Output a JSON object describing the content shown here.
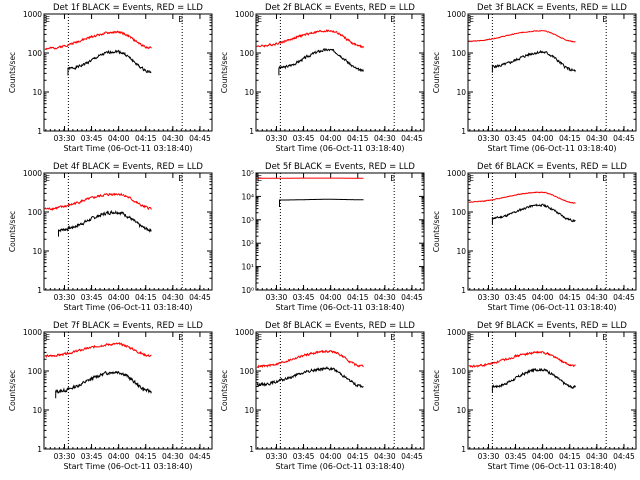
{
  "figure": {
    "background": "#ffffff"
  },
  "styles": {
    "events_color": "#000000",
    "lld_color": "#ff0000",
    "axis_color": "#000000"
  },
  "chart_data": [
    {
      "type": "line",
      "title": "Det 1f BLACK = Events, RED = LLD",
      "xlabel": "Start Time (06-Oct-11 03:18:40)",
      "ylabel": "Counts/sec",
      "x_tick_labels": [
        "03:30",
        "03:45",
        "04:00",
        "04:15",
        "04:30",
        "04:45"
      ],
      "x_tick_minutes": [
        11.33,
        26.33,
        41.33,
        56.33,
        71.33,
        86.33
      ],
      "xlim_minutes": [
        0,
        93
      ],
      "y_scale": "log",
      "ylim": [
        1,
        1000
      ],
      "y_tick_labels": [
        "1",
        "10",
        "100",
        "1000"
      ],
      "y_tick_values": [
        1,
        10,
        100,
        1000
      ],
      "corner_marks": {
        "left": "E",
        "right": "E"
      },
      "dotted_vlines_minutes": [
        13.5,
        76.5
      ],
      "series": [
        {
          "role": "events",
          "color": "#000000",
          "x_start": 13.3,
          "x_end": 59.5,
          "start_value": 40,
          "peak_value": 110,
          "end_value": 33,
          "peak_at": 40.0,
          "noise": 0.05,
          "seed": 1
        },
        {
          "role": "lld",
          "color": "#ff0000",
          "x_start": 0.5,
          "x_end": 59.5,
          "start_value": 130,
          "peak_value": 340,
          "end_value": 135,
          "peak_at": 40.5,
          "noise": 0.04,
          "seed": 2
        }
      ]
    },
    {
      "type": "line",
      "title": "Det 2f BLACK = Events, RED = LLD",
      "xlabel": "Start Time (06-Oct-11 03:18:40)",
      "ylabel": "Counts/sec",
      "x_tick_labels": [
        "03:30",
        "03:45",
        "04:00",
        "04:15",
        "04:30",
        "04:45"
      ],
      "x_tick_minutes": [
        11.33,
        26.33,
        41.33,
        56.33,
        71.33,
        86.33
      ],
      "xlim_minutes": [
        0,
        93
      ],
      "y_scale": "log",
      "ylim": [
        1,
        1000
      ],
      "y_tick_labels": [
        "1",
        "10",
        "100",
        "1000"
      ],
      "y_tick_values": [
        1,
        10,
        100,
        1000
      ],
      "corner_marks": {
        "left": "E",
        "right": "E"
      },
      "dotted_vlines_minutes": [
        13.5,
        76.5
      ],
      "series": [
        {
          "role": "events",
          "color": "#000000",
          "x_start": 12.7,
          "x_end": 59.5,
          "start_value": 42,
          "peak_value": 120,
          "end_value": 35,
          "peak_at": 40.0,
          "noise": 0.05,
          "seed": 3
        },
        {
          "role": "lld",
          "color": "#ff0000",
          "x_start": 0.5,
          "x_end": 59.5,
          "start_value": 150,
          "peak_value": 370,
          "end_value": 145,
          "peak_at": 40.5,
          "noise": 0.04,
          "seed": 4
        }
      ]
    },
    {
      "type": "line",
      "title": "Det 3f BLACK = Events, RED = LLD",
      "xlabel": "Start Time (06-Oct-11 03:18:40)",
      "ylabel": "Counts/sec",
      "x_tick_labels": [
        "03:30",
        "03:45",
        "04:00",
        "04:15",
        "04:30",
        "04:45"
      ],
      "x_tick_minutes": [
        11.33,
        26.33,
        41.33,
        56.33,
        71.33,
        86.33
      ],
      "xlim_minutes": [
        0,
        93
      ],
      "y_scale": "log",
      "ylim": [
        1,
        1000
      ],
      "y_tick_labels": [
        "1",
        "10",
        "100",
        "1000"
      ],
      "y_tick_values": [
        1,
        10,
        100,
        1000
      ],
      "corner_marks": {
        "left": "E",
        "right": "E"
      },
      "dotted_vlines_minutes": [
        13.5,
        76.5
      ],
      "series": [
        {
          "role": "events",
          "color": "#000000",
          "x_start": 13.5,
          "x_end": 59.5,
          "start_value": 45,
          "peak_value": 105,
          "end_value": 35,
          "peak_at": 41.0,
          "noise": 0.05,
          "seed": 5
        },
        {
          "role": "lld",
          "color": "#ff0000",
          "x_start": 0.5,
          "x_end": 59.5,
          "start_value": 200,
          "peak_value": 370,
          "end_value": 195,
          "peak_at": 40.5,
          "noise": 0.015,
          "seed": 6
        }
      ]
    },
    {
      "type": "line",
      "title": "Det 4f BLACK = Events, RED = LLD",
      "xlabel": "Start Time (06-Oct-11 03:18:40)",
      "ylabel": "Counts/sec",
      "x_tick_labels": [
        "03:30",
        "03:45",
        "04:00",
        "04:15",
        "04:30",
        "04:45"
      ],
      "x_tick_minutes": [
        11.33,
        26.33,
        41.33,
        56.33,
        71.33,
        86.33
      ],
      "xlim_minutes": [
        0,
        93
      ],
      "y_scale": "log",
      "ylim": [
        1,
        1000
      ],
      "y_tick_labels": [
        "1",
        "10",
        "100",
        "1000"
      ],
      "y_tick_values": [
        1,
        10,
        100,
        1000
      ],
      "corner_marks": {
        "left": "E",
        "right": "E"
      },
      "dotted_vlines_minutes": [
        13.5,
        76.5
      ],
      "series": [
        {
          "role": "events",
          "color": "#000000",
          "x_start": 8.0,
          "x_end": 59.5,
          "start_value": 35,
          "peak_value": 100,
          "end_value": 35,
          "peak_at": 40.0,
          "noise": 0.06,
          "seed": 7
        },
        {
          "role": "lld",
          "color": "#ff0000",
          "x_start": 0.5,
          "x_end": 59.5,
          "start_value": 120,
          "peak_value": 290,
          "end_value": 125,
          "peak_at": 40.5,
          "noise": 0.045,
          "seed": 8
        }
      ]
    },
    {
      "type": "line",
      "title": "Det 5f BLACK = Events, RED = LLD",
      "xlabel": "Start Time (06-Oct-11 03:18:40)",
      "ylabel": "",
      "x_tick_labels": [
        "03:30",
        "03:45",
        "04:00",
        "04:15",
        "04:30",
        "04:45"
      ],
      "x_tick_minutes": [
        11.33,
        26.33,
        41.33,
        56.33,
        71.33,
        86.33
      ],
      "xlim_minutes": [
        0,
        93
      ],
      "y_scale": "log",
      "ylim": [
        1,
        100000
      ],
      "y_tick_labels": [
        "10⁰",
        "10¹",
        "10²",
        "10³",
        "10⁴",
        "10⁵"
      ],
      "y_tick_values": [
        1,
        10,
        100,
        1000,
        10000,
        100000
      ],
      "corner_marks": {
        "left": "E",
        "right": "E"
      },
      "dotted_vlines_minutes": [
        13.5,
        76.5
      ],
      "series": [
        {
          "role": "events",
          "color": "#000000",
          "x_start": 13.0,
          "x_end": 59.5,
          "start_value": 7000,
          "peak_value": 7500,
          "end_value": 7200,
          "peak_at": 40.0,
          "noise": 0.002,
          "seed": 9
        },
        {
          "role": "lld",
          "color": "#ff0000",
          "x_start": 0.5,
          "x_end": 59.5,
          "start_value": 60000,
          "peak_value": 60500,
          "end_value": 60000,
          "peak_at": 40.0,
          "noise": 0.001,
          "seed": 10
        }
      ]
    },
    {
      "type": "line",
      "title": "Det 6f BLACK = Events, RED = LLD",
      "xlabel": "Start Time (06-Oct-11 03:18:40)",
      "ylabel": "Counts/sec",
      "x_tick_labels": [
        "03:30",
        "03:45",
        "04:00",
        "04:15",
        "04:30",
        "04:45"
      ],
      "x_tick_minutes": [
        11.33,
        26.33,
        41.33,
        56.33,
        71.33,
        86.33
      ],
      "xlim_minutes": [
        0,
        93
      ],
      "y_scale": "log",
      "ylim": [
        1,
        1000
      ],
      "y_tick_labels": [
        "1",
        "10",
        "100",
        "1000"
      ],
      "y_tick_values": [
        1,
        10,
        100,
        1000
      ],
      "corner_marks": {
        "left": "E",
        "right": "E"
      },
      "dotted_vlines_minutes": [
        13.5,
        76.5
      ],
      "series": [
        {
          "role": "events",
          "color": "#000000",
          "x_start": 13.5,
          "x_end": 59.5,
          "start_value": 70,
          "peak_value": 150,
          "end_value": 60,
          "peak_at": 40.0,
          "noise": 0.04,
          "seed": 11
        },
        {
          "role": "lld",
          "color": "#ff0000",
          "x_start": 0.5,
          "x_end": 59.5,
          "start_value": 180,
          "peak_value": 320,
          "end_value": 170,
          "peak_at": 40.5,
          "noise": 0.015,
          "seed": 12
        }
      ]
    },
    {
      "type": "line",
      "title": "Det 7f BLACK = Events, RED = LLD",
      "xlabel": "Start Time (06-Oct-11 03:18:40)",
      "ylabel": "Counts/sec",
      "x_tick_labels": [
        "03:30",
        "03:45",
        "04:00",
        "04:15",
        "04:30",
        "04:45"
      ],
      "x_tick_minutes": [
        11.33,
        26.33,
        41.33,
        56.33,
        71.33,
        86.33
      ],
      "xlim_minutes": [
        0,
        93
      ],
      "y_scale": "log",
      "ylim": [
        1,
        1000
      ],
      "y_tick_labels": [
        "1",
        "10",
        "100",
        "1000"
      ],
      "y_tick_values": [
        1,
        10,
        100,
        1000
      ],
      "corner_marks": {
        "left": "E",
        "right": "E"
      },
      "dotted_vlines_minutes": [
        13.5,
        76.5
      ],
      "series": [
        {
          "role": "events",
          "color": "#000000",
          "x_start": 6.5,
          "x_end": 59.5,
          "start_value": 30,
          "peak_value": 95,
          "end_value": 30,
          "peak_at": 40.0,
          "noise": 0.06,
          "seed": 13
        },
        {
          "role": "lld",
          "color": "#ff0000",
          "x_start": 0.5,
          "x_end": 59.5,
          "start_value": 240,
          "peak_value": 490,
          "end_value": 245,
          "peak_at": 40.5,
          "noise": 0.04,
          "seed": 14
        }
      ]
    },
    {
      "type": "line",
      "title": "Det 8f BLACK = Events, RED = LLD",
      "xlabel": "Start Time (06-Oct-11 03:18:40)",
      "ylabel": "Counts/sec",
      "x_tick_labels": [
        "03:30",
        "03:45",
        "04:00",
        "04:15",
        "04:30",
        "04:45"
      ],
      "x_tick_minutes": [
        11.33,
        26.33,
        41.33,
        56.33,
        71.33,
        86.33
      ],
      "xlim_minutes": [
        0,
        93
      ],
      "y_scale": "log",
      "ylim": [
        1,
        1000
      ],
      "y_tick_labels": [
        "1",
        "10",
        "100",
        "1000"
      ],
      "y_tick_values": [
        1,
        10,
        100,
        1000
      ],
      "corner_marks": {
        "left": "E",
        "right": "E"
      },
      "dotted_vlines_minutes": [
        13.5,
        76.5
      ],
      "series": [
        {
          "role": "events",
          "color": "#000000",
          "x_start": 0.5,
          "x_end": 59.5,
          "start_value": 45,
          "peak_value": 115,
          "end_value": 40,
          "peak_at": 40.0,
          "noise": 0.05,
          "seed": 15
        },
        {
          "role": "lld",
          "color": "#ff0000",
          "x_start": 0.5,
          "x_end": 59.5,
          "start_value": 130,
          "peak_value": 320,
          "end_value": 130,
          "peak_at": 40.5,
          "noise": 0.04,
          "seed": 16
        }
      ]
    },
    {
      "type": "line",
      "title": "Det 9f BLACK = Events, RED = LLD",
      "xlabel": "Start Time (06-Oct-11 03:18:40)",
      "ylabel": "Counts/sec",
      "x_tick_labels": [
        "03:30",
        "03:45",
        "04:00",
        "04:15",
        "04:30",
        "04:45"
      ],
      "x_tick_minutes": [
        11.33,
        26.33,
        41.33,
        56.33,
        71.33,
        86.33
      ],
      "xlim_minutes": [
        0,
        93
      ],
      "y_scale": "log",
      "ylim": [
        1,
        1000
      ],
      "y_tick_labels": [
        "1",
        "10",
        "100",
        "1000"
      ],
      "y_tick_values": [
        1,
        10,
        100,
        1000
      ],
      "corner_marks": {
        "left": "E",
        "right": "E"
      },
      "dotted_vlines_minutes": [
        13.5,
        76.5
      ],
      "series": [
        {
          "role": "events",
          "color": "#000000",
          "x_start": 13.5,
          "x_end": 59.5,
          "start_value": 40,
          "peak_value": 110,
          "end_value": 38,
          "peak_at": 40.0,
          "noise": 0.05,
          "seed": 17
        },
        {
          "role": "lld",
          "color": "#ff0000",
          "x_start": 0.5,
          "x_end": 59.5,
          "start_value": 130,
          "peak_value": 300,
          "end_value": 135,
          "peak_at": 40.5,
          "noise": 0.04,
          "seed": 18
        }
      ]
    }
  ]
}
